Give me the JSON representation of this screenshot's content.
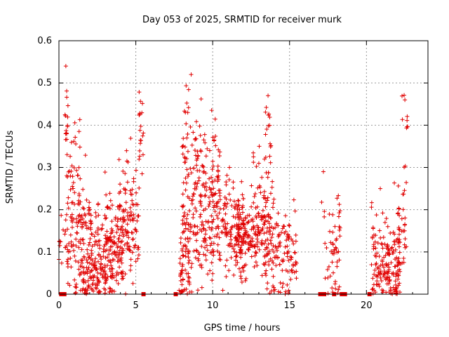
{
  "chart_data": {
    "type": "scatter",
    "title": "Day 053 of 2025, SRMTID for receiver murk",
    "xlabel": "GPS time / hours",
    "ylabel": "SRMTID / TECUs",
    "xlim": [
      0,
      24
    ],
    "ylim": [
      0,
      0.6
    ],
    "xticks": [
      "0",
      "5",
      "10",
      "15",
      "20"
    ],
    "yticks": [
      "0",
      "0.1",
      "0.2",
      "0.3",
      "0.4",
      "0.5",
      "0.6"
    ],
    "grid": true,
    "marker": "+",
    "color": "#e00000",
    "clusters": [
      {
        "x": [
          0.0,
          0.45
        ],
        "y_mean": 0.15,
        "y_spread": 0.09,
        "n": 10
      },
      {
        "x": [
          0.35,
          0.6
        ],
        "y_mean": 0.42,
        "y_spread": 0.05,
        "n": 14
      },
      {
        "x": [
          0.5,
          1.4
        ],
        "y_mean": 0.27,
        "y_spread": 0.07,
        "n": 40
      },
      {
        "x": [
          0.4,
          2.2
        ],
        "y_mean": 0.12,
        "y_spread": 0.08,
        "n": 90
      },
      {
        "x": [
          1.4,
          3.5
        ],
        "y_mean": 0.08,
        "y_spread": 0.07,
        "n": 200
      },
      {
        "x": [
          3.0,
          4.2
        ],
        "y_mean": 0.13,
        "y_spread": 0.06,
        "n": 90
      },
      {
        "x": [
          3.8,
          5.2
        ],
        "y_mean": 0.18,
        "y_spread": 0.07,
        "n": 120
      },
      {
        "x": [
          5.2,
          5.5
        ],
        "y_mean": 0.38,
        "y_spread": 0.05,
        "n": 20
      },
      {
        "x": [
          7.8,
          8.5
        ],
        "y_mean": 0.06,
        "y_spread": 0.05,
        "n": 40
      },
      {
        "x": [
          8.0,
          9.0
        ],
        "y_mean": 0.32,
        "y_spread": 0.08,
        "n": 60
      },
      {
        "x": [
          8.0,
          10.0
        ],
        "y_mean": 0.14,
        "y_spread": 0.07,
        "n": 120
      },
      {
        "x": [
          9.0,
          10.5
        ],
        "y_mean": 0.27,
        "y_spread": 0.07,
        "n": 80
      },
      {
        "x": [
          10.0,
          12.0
        ],
        "y_mean": 0.16,
        "y_spread": 0.06,
        "n": 150
      },
      {
        "x": [
          11.5,
          13.5
        ],
        "y_mean": 0.13,
        "y_spread": 0.04,
        "n": 150
      },
      {
        "x": [
          12.5,
          14.0
        ],
        "y_mean": 0.22,
        "y_spread": 0.08,
        "n": 70
      },
      {
        "x": [
          13.4,
          13.8
        ],
        "y_mean": 0.41,
        "y_spread": 0.04,
        "n": 10
      },
      {
        "x": [
          13.5,
          15.5
        ],
        "y_mean": 0.09,
        "y_spread": 0.05,
        "n": 120
      },
      {
        "x": [
          17.0,
          17.3
        ],
        "y_mean": 0.21,
        "y_spread": 0.02,
        "n": 3
      },
      {
        "x": [
          17.3,
          17.8
        ],
        "y_mean": 0.09,
        "y_spread": 0.05,
        "n": 15
      },
      {
        "x": [
          17.8,
          18.3
        ],
        "y_mean": 0.11,
        "y_spread": 0.07,
        "n": 35
      },
      {
        "x": [
          20.3,
          21.5
        ],
        "y_mean": 0.08,
        "y_spread": 0.06,
        "n": 80
      },
      {
        "x": [
          21.2,
          22.2
        ],
        "y_mean": 0.06,
        "y_spread": 0.05,
        "n": 90
      },
      {
        "x": [
          21.8,
          22.6
        ],
        "y_mean": 0.16,
        "y_spread": 0.07,
        "n": 40
      },
      {
        "x": [
          22.3,
          22.7
        ],
        "y_mean": 0.4,
        "y_spread": 0.04,
        "n": 8
      }
    ],
    "extra_points": [
      [
        0.45,
        0.54
      ],
      [
        8.6,
        0.52
      ],
      [
        17.2,
        0.29
      ],
      [
        20.9,
        0.25
      ],
      [
        13.6,
        0.47
      ],
      [
        22.5,
        0.46
      ]
    ],
    "zero_marks": [
      0.15,
      0.35,
      5.5,
      7.6,
      17.0,
      17.25,
      17.9,
      18.4,
      18.6,
      20.2
    ]
  }
}
